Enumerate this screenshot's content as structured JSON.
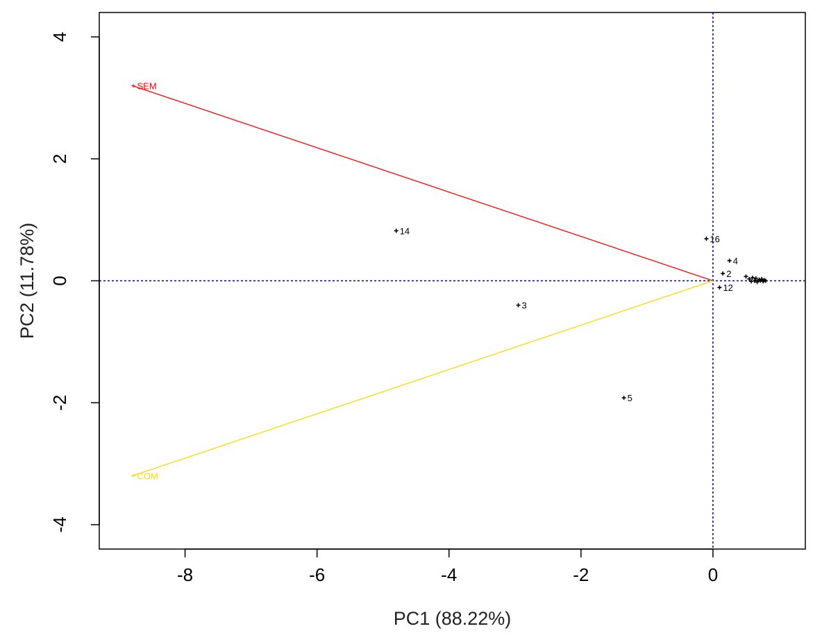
{
  "chart_data": {
    "type": "scatter",
    "xlabel": "PC1 (88.22%)",
    "ylabel": "PC2 (11.78%)",
    "xlim": [
      -9.3,
      1.4
    ],
    "ylim": [
      -4.4,
      4.4
    ],
    "x_ticks": [
      -8,
      -6,
      -4,
      -2,
      0
    ],
    "y_ticks": [
      -4,
      -2,
      0,
      2,
      4
    ],
    "reference_lines": {
      "x": 0,
      "y": 0,
      "color": "#000080",
      "style": "dotted"
    },
    "vectors": [
      {
        "name": "SEM",
        "x": -8.8,
        "y": 3.2,
        "color": "#ff0000"
      },
      {
        "name": "COM",
        "x": -8.8,
        "y": -3.2,
        "color": "#ffd700"
      }
    ],
    "points": [
      {
        "label": "14",
        "x": -4.8,
        "y": 0.82
      },
      {
        "label": "3",
        "x": -2.95,
        "y": -0.4
      },
      {
        "label": "5",
        "x": -1.35,
        "y": -1.92
      },
      {
        "label": "16",
        "x": -0.1,
        "y": 0.69
      },
      {
        "label": "4",
        "x": 0.25,
        "y": 0.33
      },
      {
        "label": "2",
        "x": 0.15,
        "y": 0.12
      },
      {
        "label": "12",
        "x": 0.1,
        "y": -0.11
      },
      {
        "label": "",
        "x": 0.5,
        "y": 0.07
      },
      {
        "label": "",
        "x": 0.55,
        "y": 0.03
      },
      {
        "label": "",
        "x": 0.58,
        "y": -0.01
      },
      {
        "label": "",
        "x": 0.6,
        "y": 0.05
      },
      {
        "label": "",
        "x": 0.63,
        "y": 0.0
      },
      {
        "label": "",
        "x": 0.65,
        "y": 0.04
      },
      {
        "label": "",
        "x": 0.67,
        "y": -0.02
      },
      {
        "label": "",
        "x": 0.7,
        "y": 0.02
      },
      {
        "label": "",
        "x": 0.72,
        "y": 0.0
      },
      {
        "label": "",
        "x": 0.74,
        "y": 0.03
      },
      {
        "label": "",
        "x": 0.76,
        "y": -0.01
      },
      {
        "label": "",
        "x": 0.78,
        "y": 0.01
      },
      {
        "label": "",
        "x": 0.8,
        "y": 0.0
      }
    ]
  }
}
